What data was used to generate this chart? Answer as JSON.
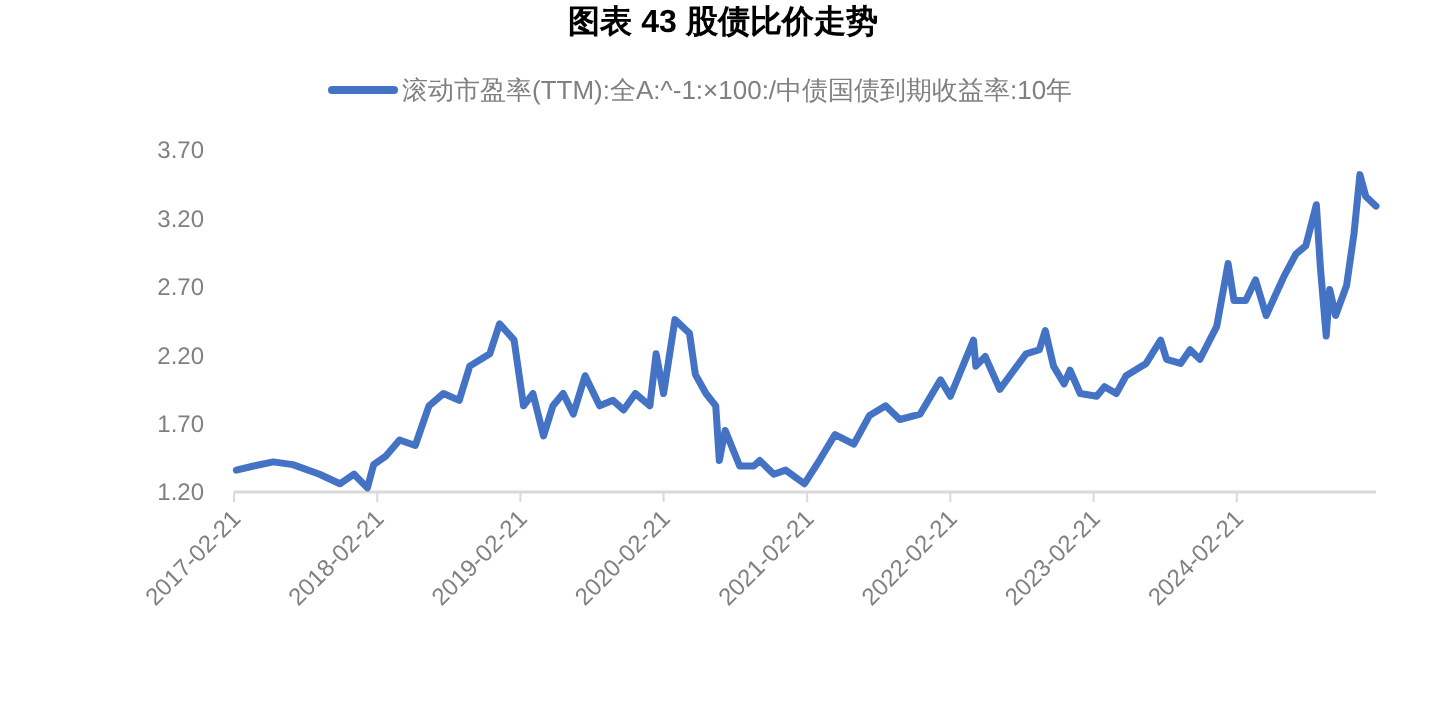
{
  "chart_data": {
    "type": "line",
    "title": "图表 43 股债比价走势",
    "legend": "top",
    "grid": false,
    "xlim": [
      "2017-02-21",
      "2025-02-10"
    ],
    "xticks": [
      {
        "value": "2017-02-21",
        "label": "2017-02-21"
      },
      {
        "value": "2018-02-21",
        "label": "2018-02-21"
      },
      {
        "value": "2019-02-21",
        "label": "2019-02-21"
      },
      {
        "value": "2020-02-21",
        "label": "2020-02-21"
      },
      {
        "value": "2021-02-21",
        "label": "2021-02-21"
      },
      {
        "value": "2022-02-21",
        "label": "2022-02-21"
      },
      {
        "value": "2023-02-21",
        "label": "2023-02-21"
      },
      {
        "value": "2024-02-21",
        "label": "2024-02-21"
      }
    ],
    "ylim": [
      1.2,
      3.7
    ],
    "yticks": [
      {
        "value": 1.2,
        "label": "1.20"
      },
      {
        "value": 1.7,
        "label": "1.70"
      },
      {
        "value": 2.2,
        "label": "2.20"
      },
      {
        "value": 2.7,
        "label": "2.70"
      },
      {
        "value": 3.2,
        "label": "3.20"
      },
      {
        "value": 3.7,
        "label": "3.70"
      }
    ],
    "x": [
      "2017-02-27",
      "2017-04-12",
      "2017-06-01",
      "2017-07-21",
      "2017-09-27",
      "2017-11-18",
      "2017-12-24",
      "2018-01-27",
      "2018-02-12",
      "2018-03-14",
      "2018-04-19",
      "2018-05-29",
      "2018-07-03",
      "2018-08-09",
      "2018-09-18",
      "2018-10-15",
      "2018-12-05",
      "2018-12-30",
      "2019-02-05",
      "2019-03-01",
      "2019-03-25",
      "2019-04-21",
      "2019-05-15",
      "2019-06-10",
      "2019-07-06",
      "2019-08-05",
      "2019-09-11",
      "2019-10-15",
      "2019-11-11",
      "2019-12-11",
      "2020-01-17",
      "2020-02-02",
      "2020-02-21",
      "2020-03-21",
      "2020-04-27",
      "2020-05-12",
      "2020-06-08",
      "2020-07-03",
      "2020-07-12",
      "2020-07-27",
      "2020-09-02",
      "2020-10-08",
      "2020-10-23",
      "2020-11-28",
      "2020-12-28",
      "2021-02-14",
      "2021-03-24",
      "2021-05-03",
      "2021-06-20",
      "2021-07-30",
      "2021-09-09",
      "2021-10-15",
      "2021-12-06",
      "2022-01-27",
      "2022-02-21",
      "2022-04-21",
      "2022-04-27",
      "2022-05-21",
      "2022-06-27",
      "2022-08-02",
      "2022-09-02",
      "2022-10-06",
      "2022-10-21",
      "2022-11-11",
      "2022-12-08",
      "2022-12-23",
      "2023-01-18",
      "2023-03-01",
      "2023-03-21",
      "2023-04-20",
      "2023-05-15",
      "2023-07-05",
      "2023-08-11",
      "2023-08-26",
      "2023-10-01",
      "2023-10-25",
      "2023-11-19",
      "2024-01-01",
      "2024-01-30",
      "2024-02-14",
      "2024-03-15",
      "2024-04-09",
      "2024-05-06",
      "2024-06-21",
      "2024-07-21",
      "2024-08-15",
      "2024-09-11",
      "2024-09-21",
      "2024-10-06",
      "2024-10-15",
      "2024-10-30",
      "2024-11-27",
      "2024-12-16",
      "2024-12-31",
      "2025-01-15",
      "2025-02-10"
    ],
    "series": [
      {
        "name": "滚动市盈率(TTM):全A:^-1:×100:/中债国债到期收益率:10年",
        "color": "#4472c4",
        "values": [
          1.36,
          1.39,
          1.42,
          1.4,
          1.33,
          1.26,
          1.33,
          1.23,
          1.4,
          1.46,
          1.58,
          1.54,
          1.83,
          1.92,
          1.87,
          2.12,
          2.21,
          2.43,
          2.31,
          1.83,
          1.92,
          1.61,
          1.83,
          1.92,
          1.77,
          2.05,
          1.83,
          1.87,
          1.8,
          1.92,
          1.83,
          2.21,
          1.92,
          2.46,
          2.36,
          2.06,
          1.92,
          1.83,
          1.43,
          1.65,
          1.39,
          1.39,
          1.43,
          1.33,
          1.36,
          1.26,
          1.43,
          1.62,
          1.55,
          1.76,
          1.83,
          1.73,
          1.77,
          2.02,
          1.9,
          2.31,
          2.12,
          2.19,
          1.95,
          2.09,
          2.21,
          2.24,
          2.38,
          2.12,
          1.99,
          2.09,
          1.92,
          1.9,
          1.97,
          1.92,
          2.05,
          2.14,
          2.31,
          2.17,
          2.14,
          2.24,
          2.17,
          2.41,
          2.87,
          2.6,
          2.6,
          2.75,
          2.49,
          2.78,
          2.94,
          3.0,
          3.3,
          2.85,
          2.34,
          2.68,
          2.49,
          2.71,
          3.09,
          3.52,
          3.36,
          3.29
        ]
      }
    ]
  }
}
